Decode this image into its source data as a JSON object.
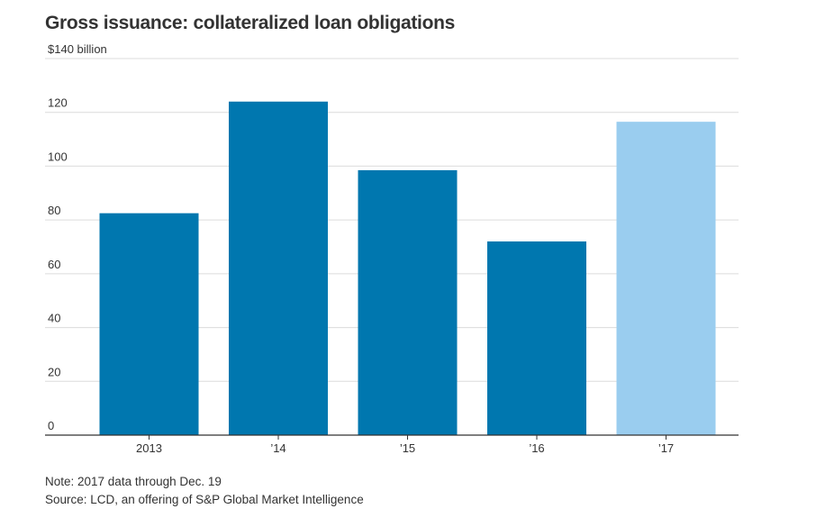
{
  "chart_data": {
    "type": "bar",
    "title": "Gross issuance: collateralized loan obligations",
    "ylabel": "",
    "xlabel": "",
    "ylim": [
      0,
      140
    ],
    "yticks": [
      0,
      20,
      40,
      60,
      80,
      100,
      120,
      140
    ],
    "ytick_labels": [
      "0",
      "20",
      "40",
      "60",
      "80",
      "100",
      "120",
      "$140 billion"
    ],
    "categories": [
      "2013",
      "’14",
      "’15",
      "’16",
      "’17"
    ],
    "values": [
      82.5,
      124,
      98.5,
      72,
      116.5
    ],
    "bar_colors": [
      "#0077af",
      "#0077af",
      "#0077af",
      "#0077af",
      "#9acdef"
    ],
    "grid": true
  },
  "notes": {
    "note": "Note: 2017 data through Dec. 19",
    "source": "Source: LCD, an offering of S&P Global Market Intelligence"
  }
}
